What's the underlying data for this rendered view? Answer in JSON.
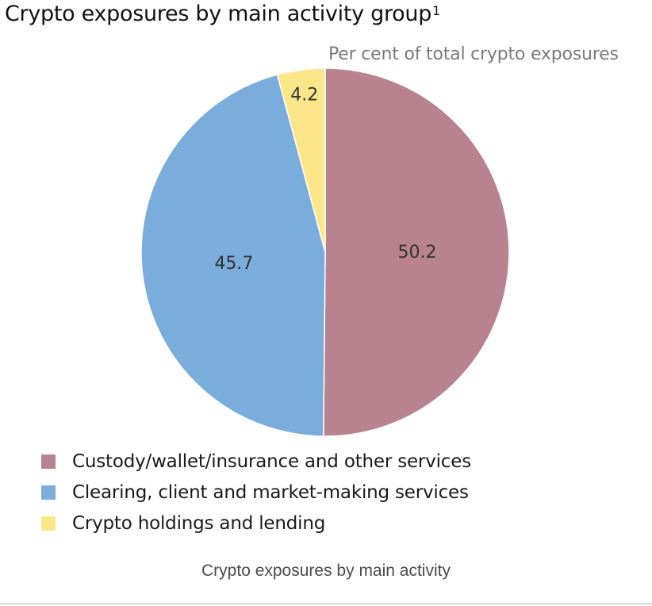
{
  "chart_data": {
    "type": "pie",
    "title": "Crypto exposures by main activity group",
    "title_footnote": "1",
    "subtitle": "Per cent of total crypto exposures",
    "slices": [
      {
        "name": "Custody/wallet/insurance and other services",
        "value": 50.2,
        "label": "50.2",
        "color": "#b8838f"
      },
      {
        "name": "Clearing, client and market-making services",
        "value": 45.7,
        "label": "45.7",
        "color": "#7aaddb"
      },
      {
        "name": "Crypto holdings and lending",
        "value": 4.2,
        "label": "4.2",
        "color": "#fbe68a"
      }
    ],
    "start": "12 o'clock",
    "direction": "clockwise",
    "legend_placement": "bottom-left"
  },
  "caption": "Crypto exposures by main activity"
}
